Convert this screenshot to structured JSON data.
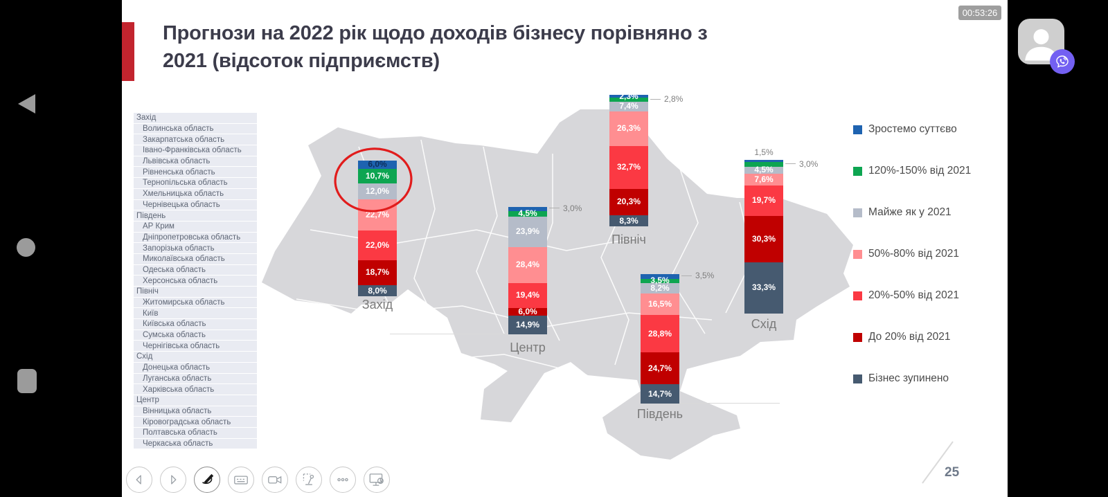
{
  "status_bar": {
    "timestamp": "00:53:26"
  },
  "call_overlay": {
    "avatar_icon": "person-silhouette",
    "viber_icon": "viber-call-badge"
  },
  "android_nav": {
    "back": "back-triangle-icon",
    "home": "home-circle-icon",
    "recents": "recents-square-icon"
  },
  "toolbar": {
    "buttons": [
      "previous",
      "next",
      "draw",
      "keyboard",
      "video-camera",
      "pointer",
      "more-options",
      "present-screen"
    ]
  },
  "slide": {
    "title": "Прогнози на 2022 рік щодо доходів бізнесу порівняно з 2021 (відсоток підприємств)",
    "page_number": "25",
    "accent_color": "#c2242e",
    "annotation_circle_color": "#e11c1c"
  },
  "region_list": [
    {
      "label": "Захід",
      "header": true
    },
    {
      "label": "Волинська область",
      "header": false
    },
    {
      "label": "Закарпатська область",
      "header": false
    },
    {
      "label": "Івано-Франківська область",
      "header": false
    },
    {
      "label": "Львівська область",
      "header": false
    },
    {
      "label": "Рівненська область",
      "header": false
    },
    {
      "label": "Тернопільська область",
      "header": false
    },
    {
      "label": "Хмельницька область",
      "header": false
    },
    {
      "label": "Чернівецька область",
      "header": false
    },
    {
      "label": "Південь",
      "header": true
    },
    {
      "label": "АР Крим",
      "header": false
    },
    {
      "label": "Дніпропетровська область",
      "header": false
    },
    {
      "label": "Запорізька область",
      "header": false
    },
    {
      "label": "Миколаївська область",
      "header": false
    },
    {
      "label": "Одеська область",
      "header": false
    },
    {
      "label": "Херсонська область",
      "header": false
    },
    {
      "label": "Північ",
      "header": true
    },
    {
      "label": "Житомирська область",
      "header": false
    },
    {
      "label": "Київ",
      "header": false
    },
    {
      "label": "Київська область",
      "header": false
    },
    {
      "label": "Сумська область",
      "header": false
    },
    {
      "label": "Чернігівська область",
      "header": false
    },
    {
      "label": "Схід",
      "header": true
    },
    {
      "label": "Донецька область",
      "header": false
    },
    {
      "label": "Луганська область",
      "header": false
    },
    {
      "label": "Харківська область",
      "header": false
    },
    {
      "label": "Центр",
      "header": true
    },
    {
      "label": "Вінницька область",
      "header": false
    },
    {
      "label": "Кіровоградська область",
      "header": false
    },
    {
      "label": "Полтавська область",
      "header": false
    },
    {
      "label": "Черкаська область",
      "header": false
    }
  ],
  "legend": [
    {
      "label": "Зростемо суттєво",
      "color": "#1e63b0"
    },
    {
      "label": "120%-150% від 2021",
      "color": "#0da551"
    },
    {
      "label": "Майже як у 2021",
      "color": "#b5bcc9"
    },
    {
      "label": "50%-80% від 2021",
      "color": "#ff8e91"
    },
    {
      "label": "20%-50% від 2021",
      "color": "#fb3943"
    },
    {
      "label": "До 20% від 2021",
      "color": "#c00000"
    },
    {
      "label": "Бізнес зупинено",
      "color": "#465a70"
    }
  ],
  "chart_data": {
    "type": "bar",
    "stacked": true,
    "unit": "%",
    "title": "Прогнози на 2022 рік щодо доходів бізнесу порівняно з 2021 (відсоток підприємств)",
    "series_labels": [
      "Зростемо суттєво",
      "120%-150% від 2021",
      "Майже як у 2021",
      "50%-80% від 2021",
      "20%-50% від 2021",
      "До 20% від 2021",
      "Бізнес зупинено"
    ],
    "colors": [
      "#1e63b0",
      "#0da551",
      "#b5bcc9",
      "#ff8e91",
      "#fb3943",
      "#c00000",
      "#465a70"
    ],
    "bars": [
      {
        "region": "Захід",
        "values": [
          6.0,
          10.7,
          12.0,
          22.7,
          22.0,
          18.7,
          8.0
        ],
        "labels": [
          "6,0%",
          "10,7%",
          "12,0%",
          "22,7%",
          "22,0%",
          "18,7%",
          "8,0%"
        ],
        "label_display": [
          true,
          true,
          true,
          true,
          true,
          true,
          true
        ],
        "annotated": true
      },
      {
        "region": "Центр",
        "values": [
          3.0,
          4.5,
          23.9,
          28.4,
          19.4,
          6.0,
          14.9
        ],
        "labels": [
          "3,0%",
          "4,5%",
          "23,9%",
          "28,4%",
          "19,4%",
          "6,0%",
          "14,9%"
        ],
        "label_display": [
          false,
          true,
          true,
          true,
          true,
          true,
          true
        ],
        "callout": {
          "index": 0,
          "text": "3,0%"
        }
      },
      {
        "region": "Північ",
        "values": [
          2.3,
          2.8,
          7.4,
          26.3,
          32.7,
          20.3,
          8.3
        ],
        "labels": [
          "2,3%",
          "2,8%",
          "7,4%",
          "26,3%",
          "32,7%",
          "20,3%",
          "8,3%"
        ],
        "label_display": [
          true,
          false,
          true,
          true,
          true,
          true,
          true
        ],
        "callout": {
          "index": 1,
          "text": "2,8%"
        }
      },
      {
        "region": "Південь",
        "values": [
          3.5,
          3.5,
          8.2,
          16.5,
          28.8,
          24.7,
          14.7
        ],
        "labels": [
          "3,5%",
          "3,5%",
          "8,2%",
          "16,5%",
          "28,8%",
          "24,7%",
          "14,7%"
        ],
        "label_display": [
          false,
          true,
          true,
          true,
          true,
          true,
          true
        ],
        "callout": {
          "index": 0,
          "text": "3,5%"
        }
      },
      {
        "region": "Схід",
        "values": [
          1.5,
          3.0,
          4.5,
          7.6,
          19.7,
          30.3,
          33.3
        ],
        "labels": [
          "1,5%",
          "3,0%",
          "4,5%",
          "7,6%",
          "19,7%",
          "30,3%",
          "33,3%"
        ],
        "label_display": [
          false,
          false,
          true,
          true,
          true,
          true,
          true
        ],
        "callout": {
          "index": 1,
          "text": "3,0%"
        },
        "above_label": "1,5%"
      }
    ]
  }
}
